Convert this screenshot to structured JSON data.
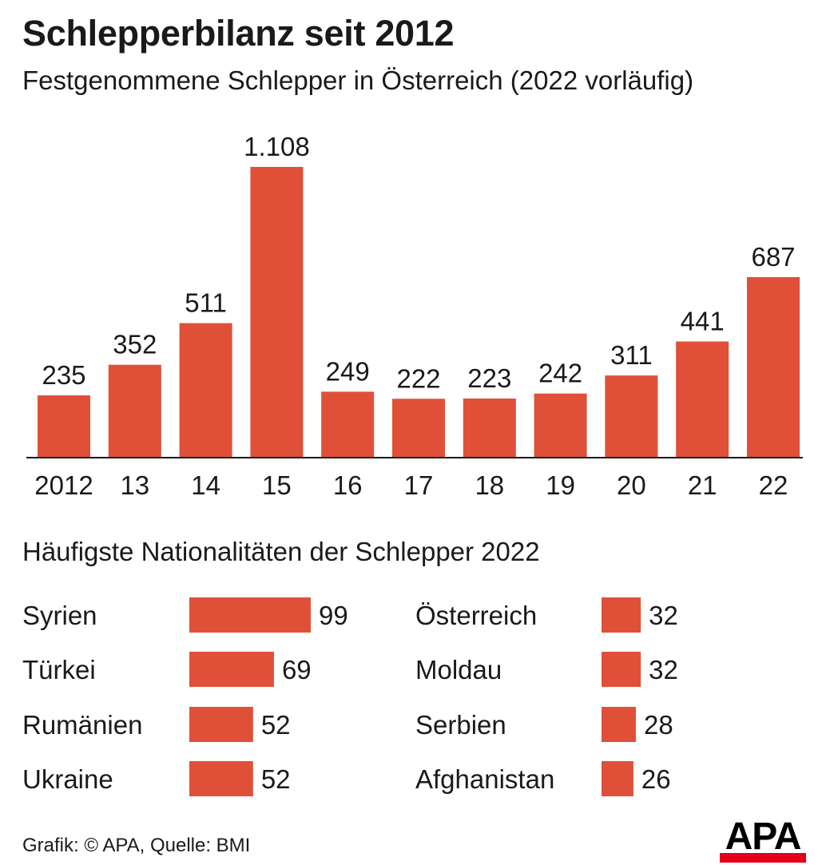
{
  "title": "Schlepperbilanz seit 2012",
  "subtitle": "Festgenommene Schlepper in Österreich (2022 vorläufig)",
  "section_title": "Häufigste Nationalitäten der Schlepper 2022",
  "footer": "Grafik: © APA, Quelle: BMI",
  "logo_text": "APA",
  "colors": {
    "bar": "#e05038",
    "axis": "#1a1a1a",
    "text": "#1a1a1a",
    "logo_red": "#e2001a"
  },
  "chart_data": [
    {
      "type": "bar",
      "title": "Festgenommene Schlepper in Österreich (2022 vorläufig)",
      "categories": [
        "2012",
        "13",
        "14",
        "15",
        "16",
        "17",
        "18",
        "19",
        "20",
        "21",
        "22"
      ],
      "values": [
        235,
        352,
        511,
        1108,
        249,
        222,
        223,
        242,
        311,
        441,
        687
      ],
      "value_labels": [
        "235",
        "352",
        "511",
        "1.108",
        "249",
        "222",
        "223",
        "242",
        "311",
        "441",
        "687"
      ],
      "ylim": [
        0,
        1108
      ],
      "grid": false
    },
    {
      "type": "bar",
      "orientation": "horizontal",
      "title": "Häufigste Nationalitäten der Schlepper 2022",
      "groups": [
        {
          "categories": [
            "Syrien",
            "Türkei",
            "Rumänien",
            "Ukraine"
          ],
          "values": [
            99,
            69,
            52,
            52
          ]
        },
        {
          "categories": [
            "Österreich",
            "Moldau",
            "Serbien",
            "Afghanistan"
          ],
          "values": [
            32,
            32,
            28,
            26
          ]
        }
      ],
      "xlim": [
        0,
        99
      ],
      "grid": false
    }
  ]
}
